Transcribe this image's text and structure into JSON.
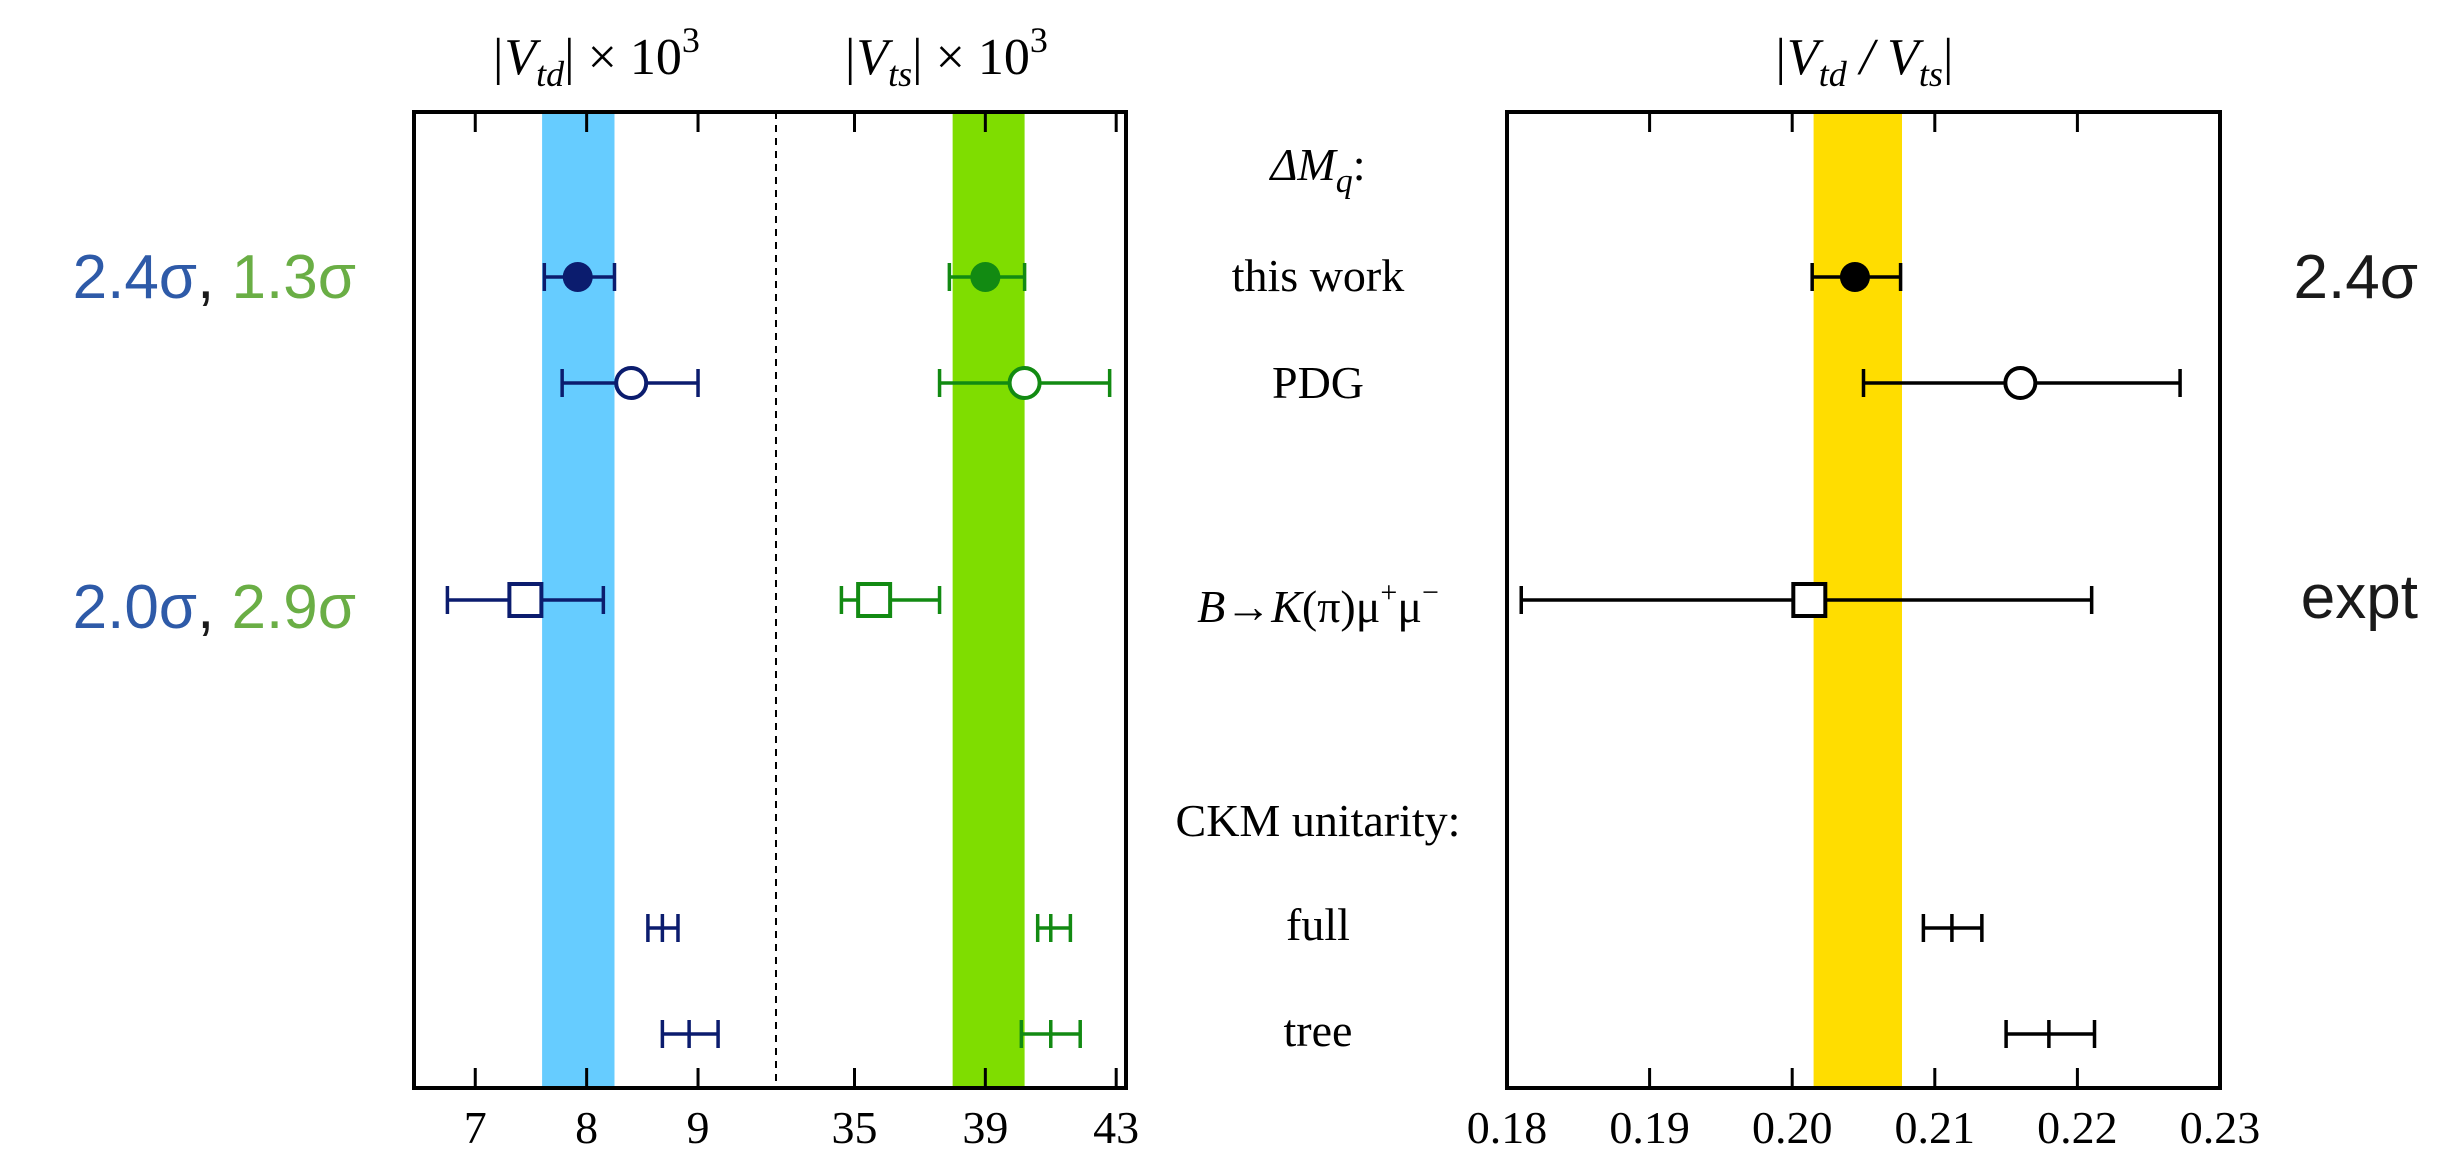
{
  "colors": {
    "vtd_band": "#66CCFF",
    "vts_band": "#7FDD00",
    "ratio_band": "#FFDD00",
    "vtd_marker": "#0B1C6E",
    "vts_marker": "#128A12",
    "ratio_marker": "#000000",
    "tension_vtd": "#2E5AA8",
    "tension_vts": "#6AAE45",
    "tension_ratio": "#1A1A1A"
  },
  "row_labels": {
    "dm_header": "ΔM",
    "dm_header_sub": "q",
    "dm_header_colon": ":",
    "this_work": "this work",
    "pdg": "PDG",
    "bk_b": "B",
    "bk_arrow": "→",
    "bk_k": "K",
    "bk_rest": "(π)μ",
    "bk_sup1": "+",
    "bk_mu": "μ",
    "bk_sup2": "−",
    "ckm_header": "CKM unitarity:",
    "full": "full",
    "tree": "tree"
  },
  "tensions": {
    "left": [
      {
        "vtd": "2.4σ",
        "sep": ", ",
        "vts": "1.3σ"
      },
      {
        "vtd": "2.0σ",
        "sep": ", ",
        "vts": "2.9σ"
      }
    ],
    "right": [
      "2.4σ",
      "expt"
    ]
  },
  "chart_data": [
    {
      "type": "scatter",
      "panel": "Vtd",
      "title_main": "|V",
      "title_sub": "td",
      "title_tail": "| × 10",
      "title_sup": "3",
      "xlim": [
        6.45,
        9.7
      ],
      "xticks": [
        7,
        8,
        9
      ],
      "xticklabels": [
        "7",
        "8",
        "9"
      ],
      "band": [
        7.6,
        8.25
      ],
      "points": [
        {
          "label": "this work",
          "value": 7.92,
          "err_low": 7.62,
          "err_high": 8.25,
          "marker": "filled-circle"
        },
        {
          "label": "PDG",
          "value": 8.4,
          "err_low": 7.78,
          "err_high": 9.0,
          "marker": "open-circle"
        },
        {
          "label": "B→K(π)μ⁺μ⁻",
          "value": 7.45,
          "err_low": 6.75,
          "err_high": 8.15,
          "marker": "open-square"
        },
        {
          "label": "full",
          "value": 8.68,
          "err_low": 8.55,
          "err_high": 8.82,
          "marker": "tick"
        },
        {
          "label": "tree",
          "value": 8.92,
          "err_low": 8.68,
          "err_high": 9.18,
          "marker": "tick"
        }
      ]
    },
    {
      "type": "scatter",
      "panel": "Vts",
      "title_main": "|V",
      "title_sub": "ts",
      "title_tail": "| × 10",
      "title_sup": "3",
      "xlim": [
        32.6,
        43.3
      ],
      "xticks": [
        35,
        39,
        43
      ],
      "xticklabels": [
        "35",
        "39",
        "43"
      ],
      "band": [
        38.0,
        40.2
      ],
      "points": [
        {
          "label": "this work",
          "value": 39.0,
          "err_low": 37.9,
          "err_high": 40.2,
          "marker": "filled-circle"
        },
        {
          "label": "PDG",
          "value": 40.2,
          "err_low": 37.6,
          "err_high": 42.8,
          "marker": "open-circle"
        },
        {
          "label": "B→K(π)μ⁺μ⁻",
          "value": 35.6,
          "err_low": 34.6,
          "err_high": 37.6,
          "marker": "open-square"
        },
        {
          "label": "full",
          "value": 41.0,
          "err_low": 40.6,
          "err_high": 41.6,
          "marker": "tick"
        },
        {
          "label": "tree",
          "value": 41.0,
          "err_low": 40.1,
          "err_high": 41.9,
          "marker": "tick"
        }
      ]
    },
    {
      "type": "scatter",
      "panel": "ratio",
      "title_main": "|V",
      "title_sub": "td",
      "title_mid": " / V",
      "title_sub2": "ts",
      "title_tail": "|",
      "xlim": [
        0.18,
        0.23
      ],
      "xticks": [
        0.18,
        0.19,
        0.2,
        0.21,
        0.22,
        0.23
      ],
      "xticklabels": [
        "0.18",
        "0.19",
        "0.20",
        "0.21",
        "0.22",
        "0.23"
      ],
      "band": [
        0.2015,
        0.2077
      ],
      "points": [
        {
          "label": "this work",
          "value": 0.2044,
          "err_low": 0.2014,
          "err_high": 0.2076,
          "marker": "filled-circle"
        },
        {
          "label": "PDG",
          "value": 0.216,
          "err_low": 0.205,
          "err_high": 0.2272,
          "marker": "open-circle"
        },
        {
          "label": "B→K(π)μ⁺μ⁻",
          "value": 0.2012,
          "err_low": 0.181,
          "err_high": 0.221,
          "marker": "open-square"
        },
        {
          "label": "full",
          "value": 0.2112,
          "err_low": 0.2092,
          "err_high": 0.2133,
          "marker": "tick"
        },
        {
          "label": "tree",
          "value": 0.218,
          "err_low": 0.215,
          "err_high": 0.2212,
          "marker": "tick"
        }
      ]
    }
  ]
}
